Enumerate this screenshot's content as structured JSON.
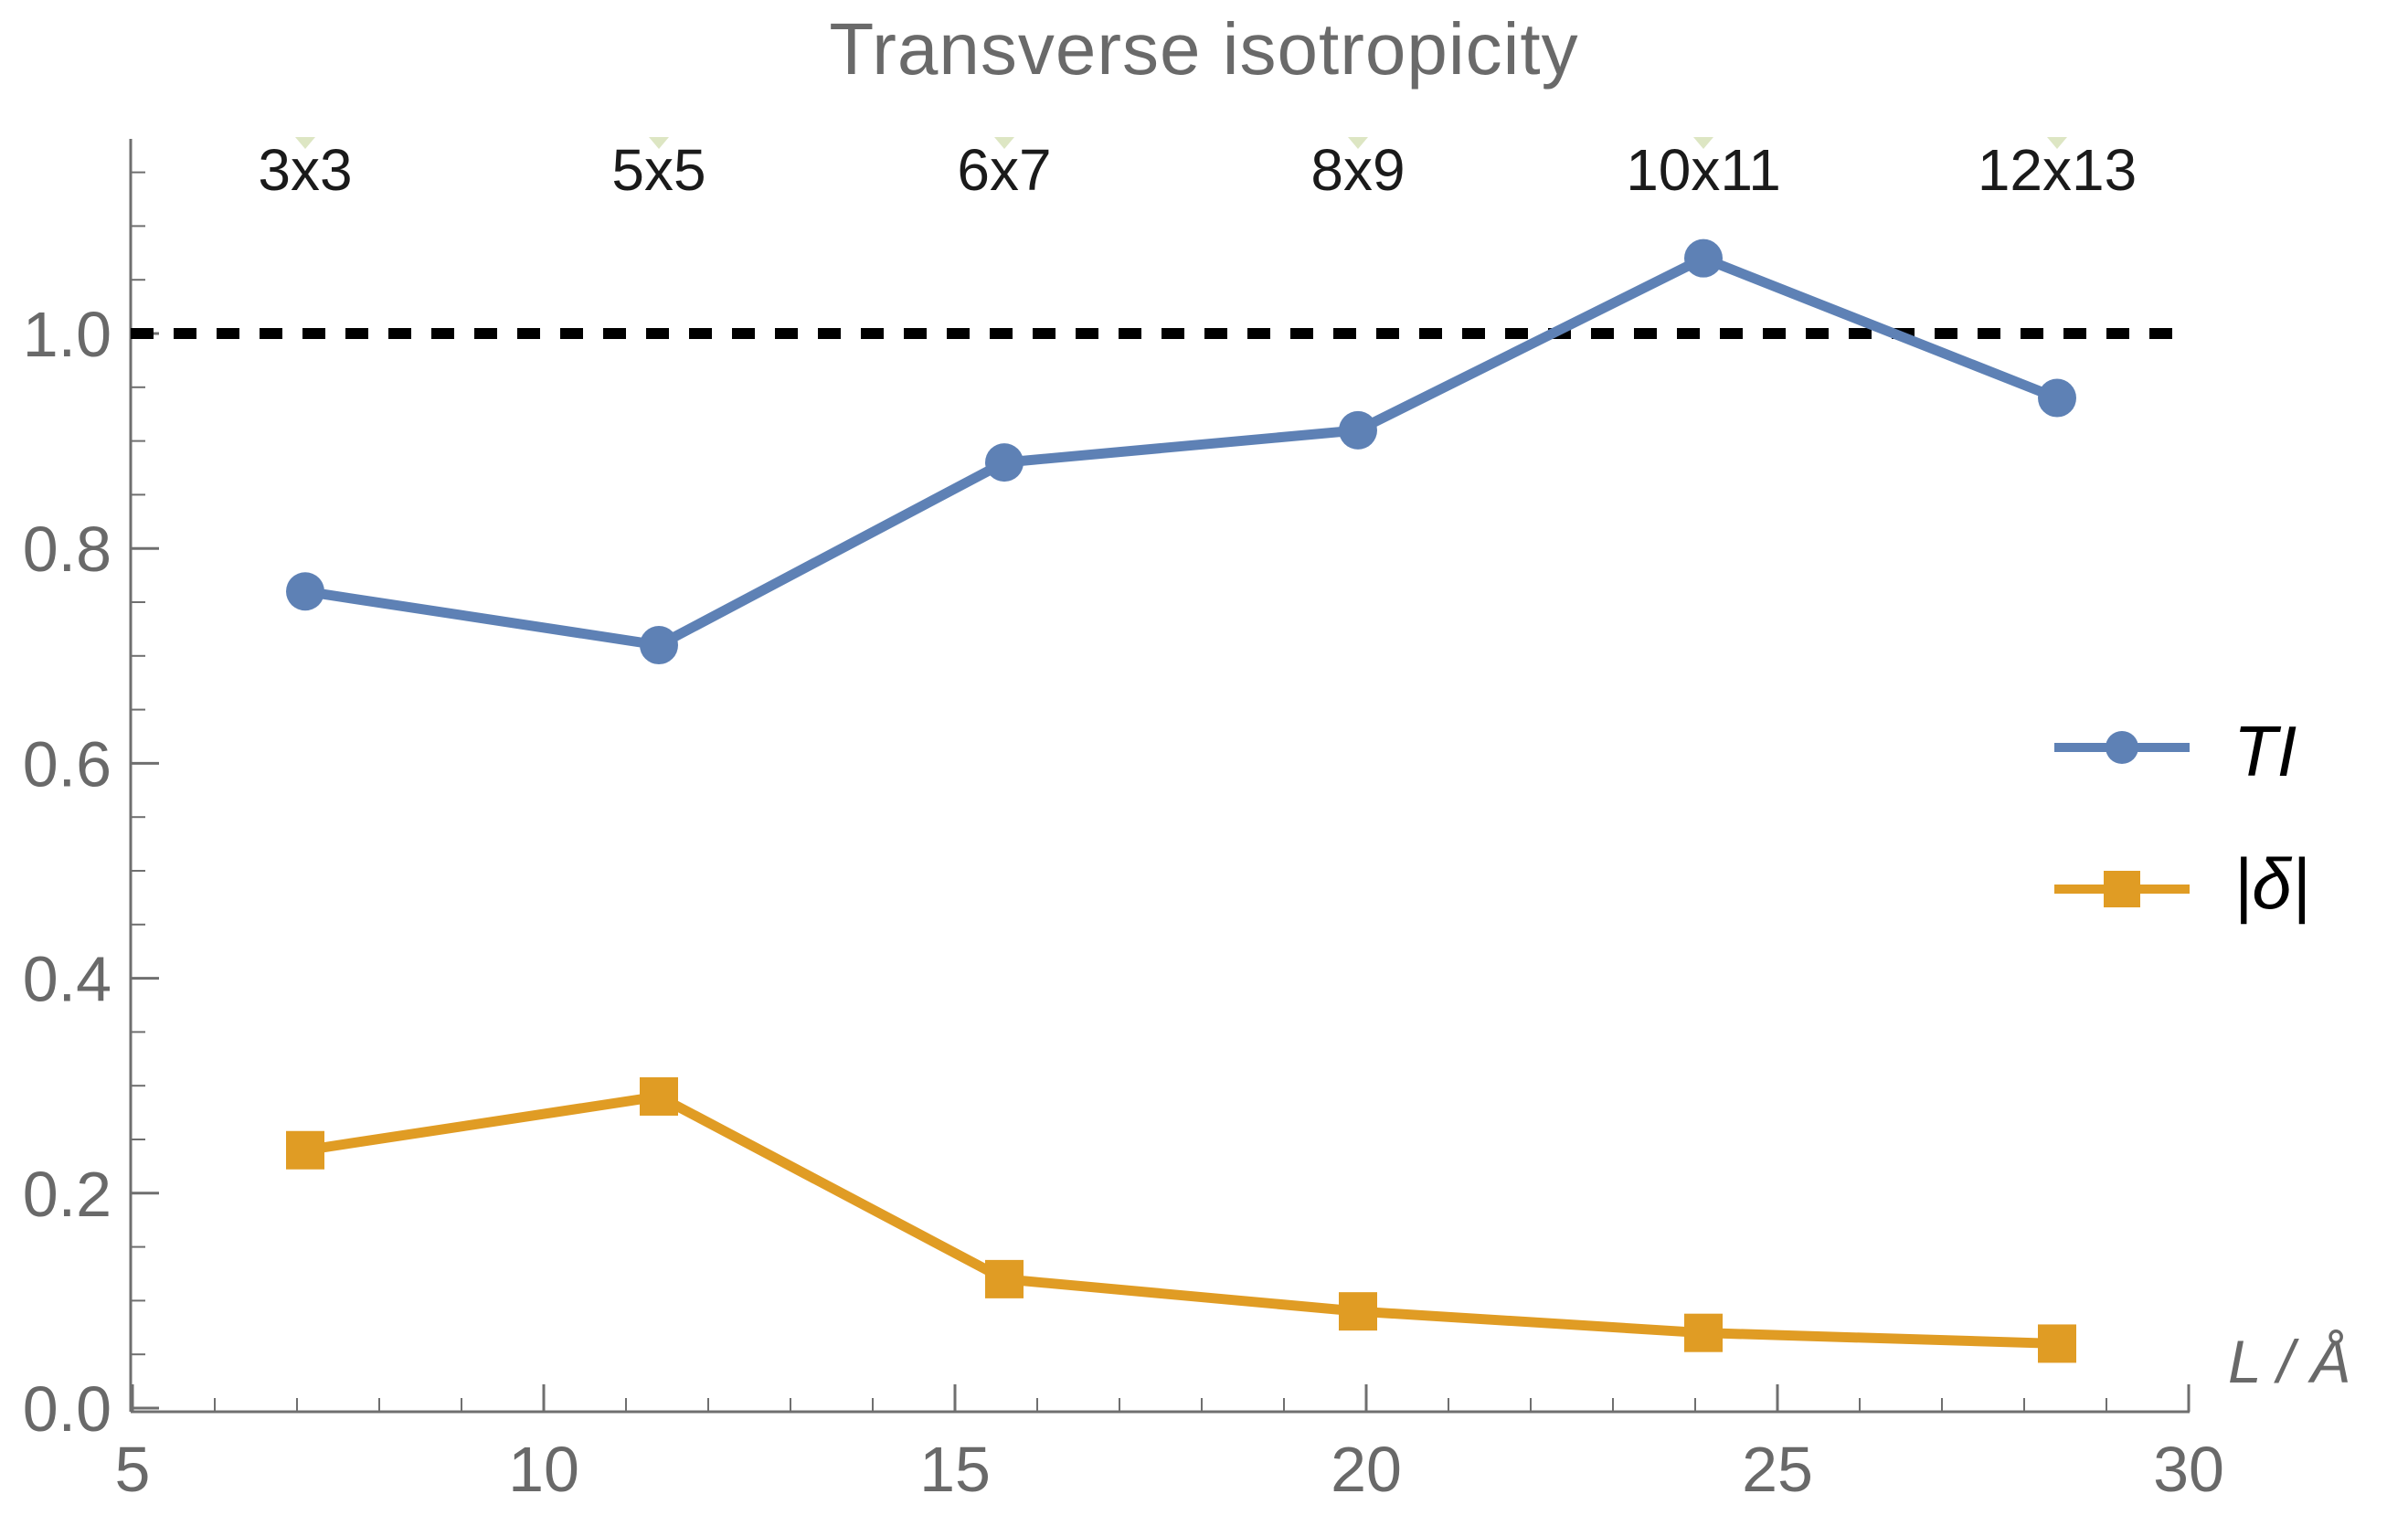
{
  "chart_data": {
    "type": "line",
    "title": "Transverse isotropicity",
    "x_axis": {
      "label": "L / Å",
      "range": [
        5,
        30
      ],
      "ticks": [
        5,
        10,
        15,
        20,
        25,
        30
      ],
      "minor_tick_step": 1
    },
    "y_axis": {
      "range": [
        0,
        1.18
      ],
      "ticks": [
        0,
        0.2,
        0.4,
        0.6,
        0.8,
        1.0
      ],
      "tick_labels": [
        "0.0",
        "0.2",
        "0.4",
        "0.6",
        "0.8",
        "1.0"
      ],
      "minor_tick_step": 0.05
    },
    "top_axis": {
      "labels": [
        "3x3",
        "5x5",
        "6x7",
        "8x9",
        "10x11",
        "12x13"
      ],
      "marker": "down-triangle",
      "marker_color": "#dde6c3"
    },
    "reference_line": {
      "value": 1.0,
      "style": "dashed",
      "color": "#000000"
    },
    "series": [
      {
        "name": "TI",
        "marker": "circle",
        "color": "#5e81b5",
        "x": [
          7.1,
          11.4,
          15.6,
          19.9,
          24.1,
          28.4
        ],
        "y": [
          0.76,
          0.71,
          0.88,
          0.91,
          1.07,
          0.94
        ]
      },
      {
        "name": "|δ|",
        "marker": "square",
        "color": "#e09c24",
        "x": [
          7.1,
          11.4,
          15.6,
          19.9,
          24.1,
          28.4
        ],
        "y": [
          0.24,
          0.29,
          0.12,
          0.09,
          0.07,
          0.06
        ]
      }
    ],
    "legend": {
      "position": "right",
      "entries": [
        "TI",
        "|δ|"
      ]
    }
  },
  "colors": {
    "axis": "#6f6f6f",
    "tick_label": "#696969",
    "title": "#6a6a6a",
    "top_label": "#1a1a1a"
  }
}
